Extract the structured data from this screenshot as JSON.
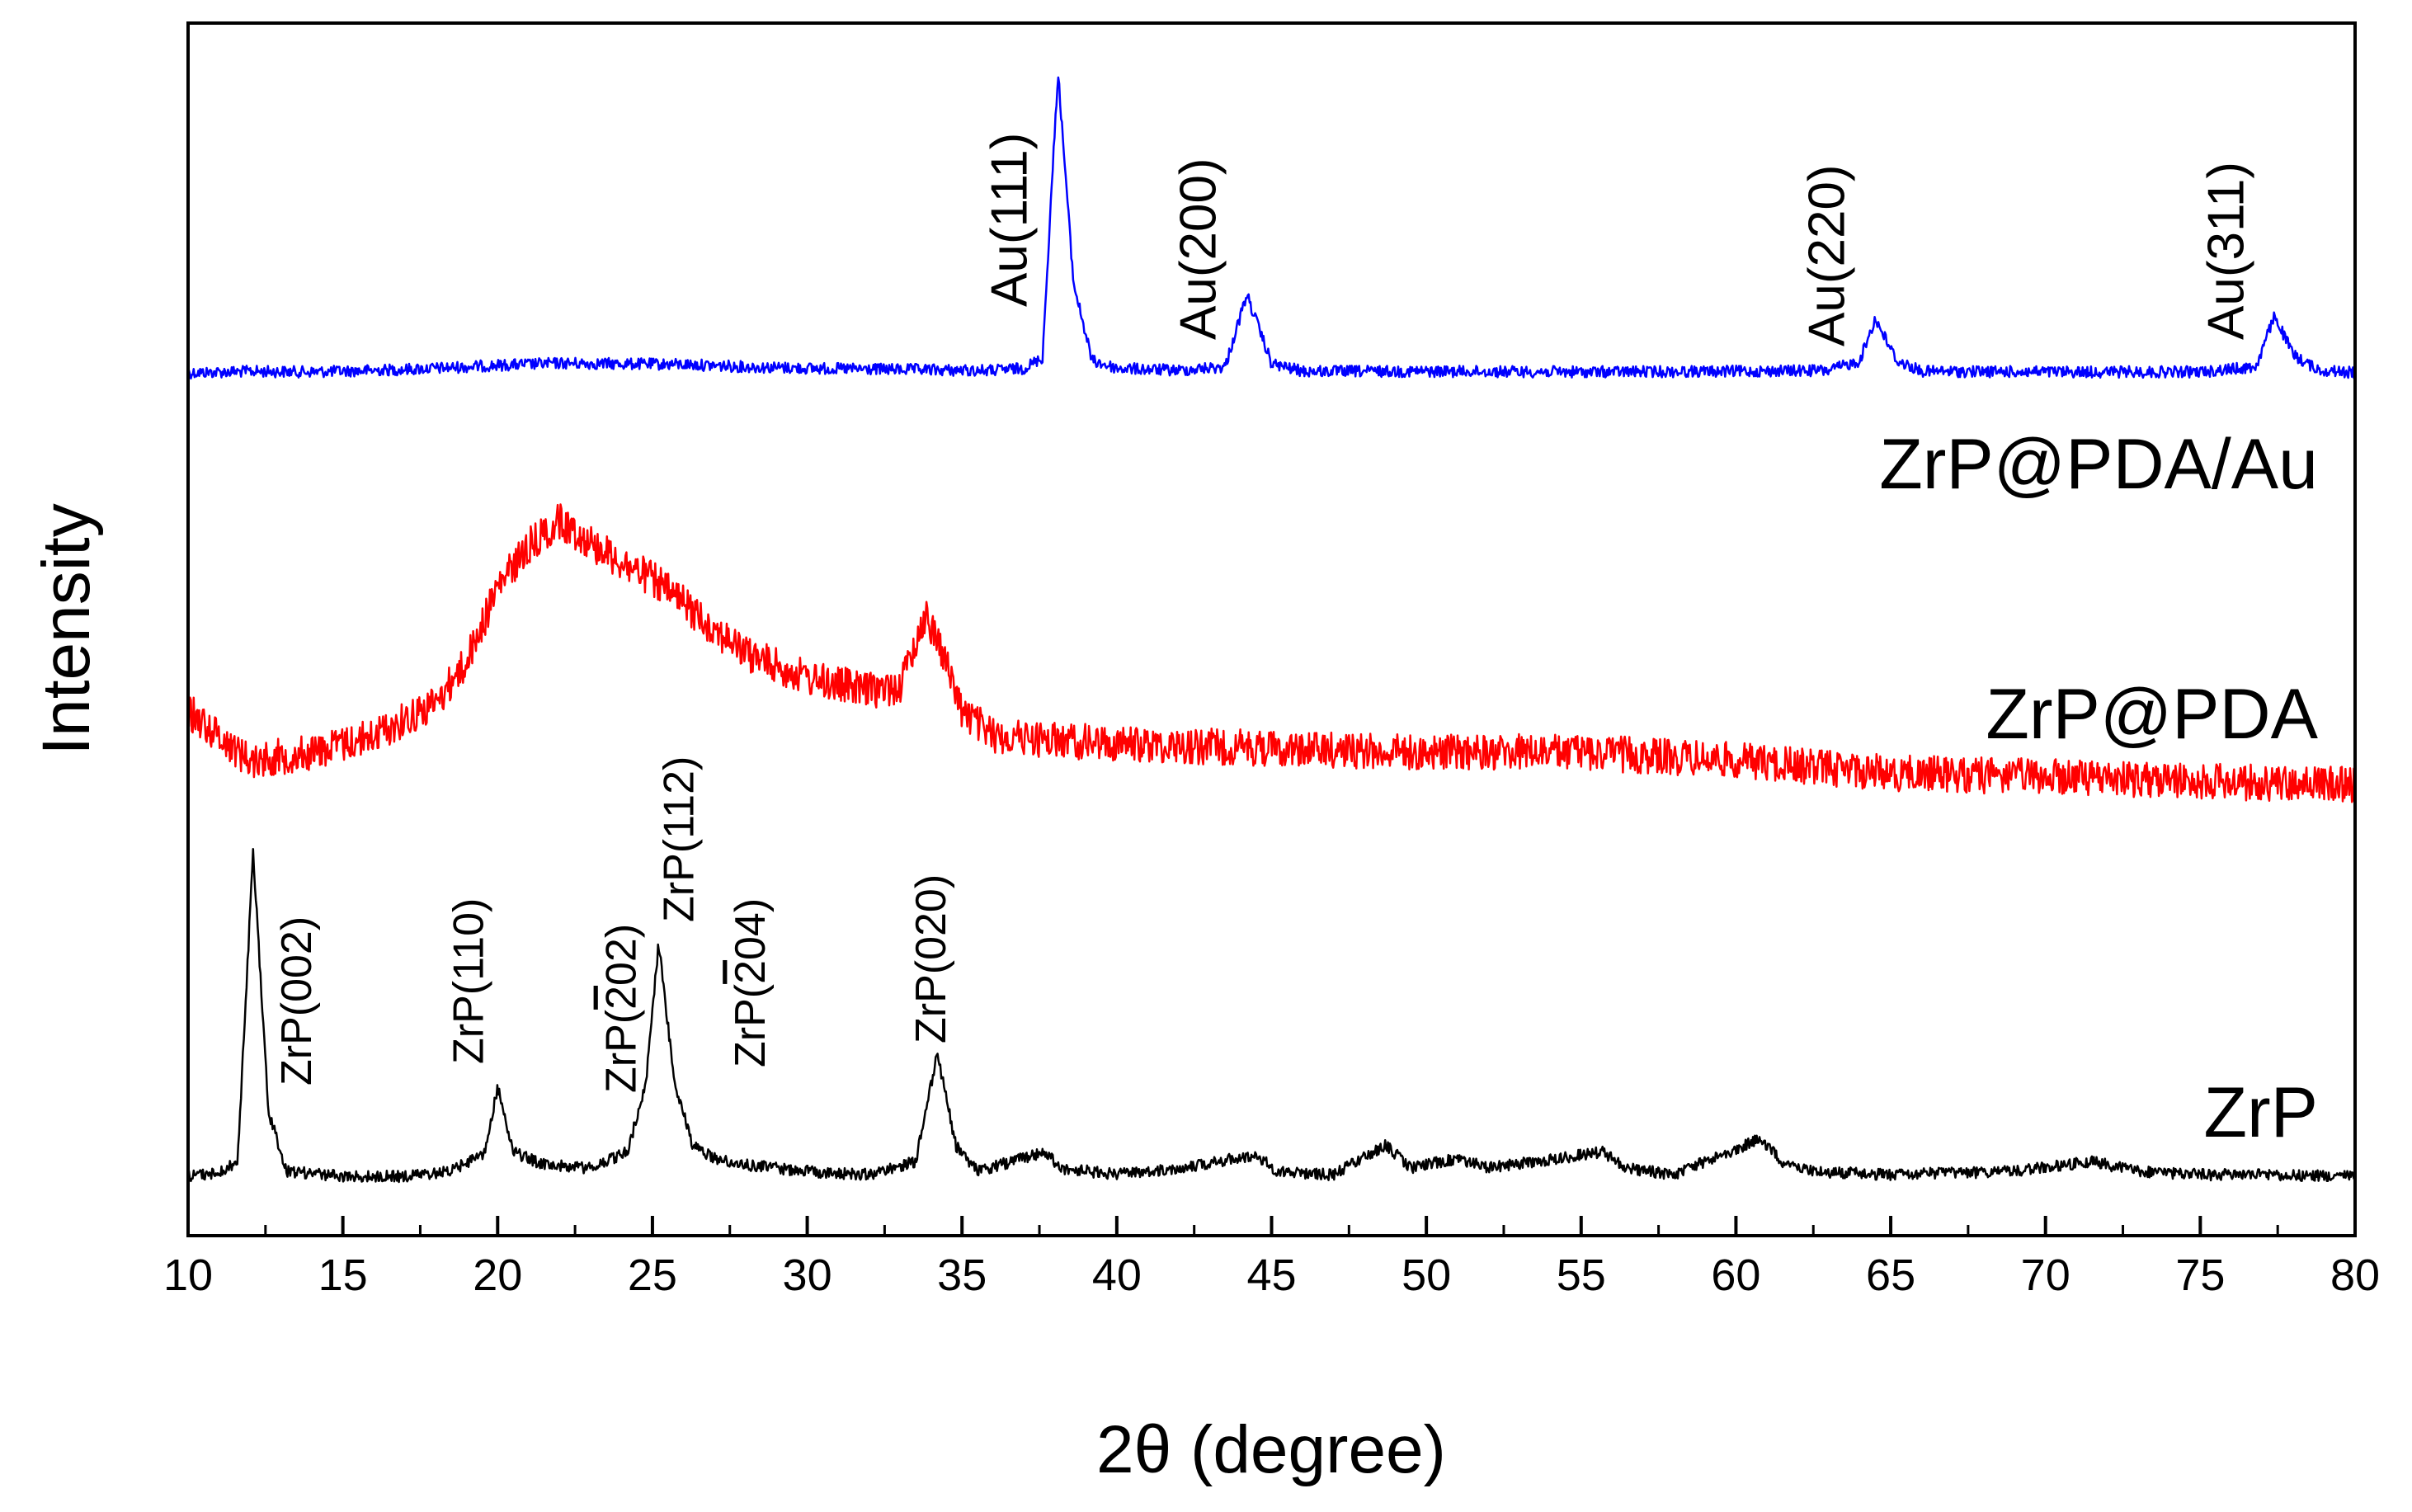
{
  "chart_data": {
    "type": "line",
    "title": "",
    "xlabel": "2θ (degree)",
    "ylabel": "Intensity",
    "xlim": [
      10,
      80
    ],
    "xticks": [
      10,
      15,
      20,
      25,
      30,
      35,
      40,
      45,
      50,
      55,
      60,
      65,
      70,
      75,
      80
    ],
    "yticks_shown": false,
    "series": [
      {
        "name": "ZrP@PDA/Au",
        "color": "#0000ff",
        "baseline": 0,
        "points": [
          [
            10,
            0
          ],
          [
            12,
            0.5
          ],
          [
            14,
            0.3
          ],
          [
            16,
            0.8
          ],
          [
            18,
            1.5
          ],
          [
            20,
            2.5
          ],
          [
            22,
            3.2
          ],
          [
            24,
            3.0
          ],
          [
            26,
            2.8
          ],
          [
            28,
            2.0
          ],
          [
            30,
            1.5
          ],
          [
            32,
            1.2
          ],
          [
            34,
            1.0
          ],
          [
            35,
            0.8
          ],
          [
            36,
            0.8
          ],
          [
            37,
            1.5
          ],
          [
            37.6,
            5
          ],
          [
            38.1,
            100
          ],
          [
            38.6,
            30
          ],
          [
            39.2,
            4
          ],
          [
            40,
            1.5
          ],
          [
            42,
            0.8
          ],
          [
            43.5,
            2
          ],
          [
            44.2,
            26
          ],
          [
            45,
            3
          ],
          [
            46,
            0.5
          ],
          [
            50,
            0.5
          ],
          [
            55,
            0.3
          ],
          [
            60,
            0.5
          ],
          [
            63,
            0.8
          ],
          [
            64,
            4
          ],
          [
            64.5,
            18
          ],
          [
            65.2,
            4
          ],
          [
            66,
            0.5
          ],
          [
            70,
            0.3
          ],
          [
            75,
            0.3
          ],
          [
            76.8,
            2
          ],
          [
            77.4,
            19
          ],
          [
            78,
            6
          ],
          [
            78.8,
            1
          ],
          [
            80,
            0
          ]
        ]
      },
      {
        "name": "ZrP@PDA",
        "color": "#ff0000",
        "baseline": 0,
        "points": [
          [
            10,
            22
          ],
          [
            12,
            10
          ],
          [
            14,
            12
          ],
          [
            16,
            16
          ],
          [
            18,
            24
          ],
          [
            19,
            34
          ],
          [
            20,
            52
          ],
          [
            21,
            62
          ],
          [
            22,
            68
          ],
          [
            23,
            63
          ],
          [
            24,
            58
          ],
          [
            25,
            54
          ],
          [
            26,
            48
          ],
          [
            27,
            42
          ],
          [
            28,
            36
          ],
          [
            30,
            30
          ],
          [
            32,
            27
          ],
          [
            33,
            28
          ],
          [
            33.8,
            45
          ],
          [
            34.2,
            40
          ],
          [
            35,
            22
          ],
          [
            36,
            16
          ],
          [
            40,
            14
          ],
          [
            45,
            13
          ],
          [
            50,
            12
          ],
          [
            55,
            12
          ],
          [
            60,
            10
          ],
          [
            65,
            7
          ],
          [
            70,
            6
          ],
          [
            75,
            5
          ],
          [
            80,
            4
          ]
        ]
      },
      {
        "name": "ZrP",
        "color": "#000000",
        "baseline": 0,
        "points": [
          [
            10,
            0.5
          ],
          [
            11,
            1.5
          ],
          [
            11.6,
            5
          ],
          [
            12.1,
            100
          ],
          [
            12.6,
            20
          ],
          [
            13.2,
            2
          ],
          [
            15,
            0.5
          ],
          [
            17,
            0.5
          ],
          [
            18.5,
            2
          ],
          [
            19.6,
            8
          ],
          [
            20,
            28
          ],
          [
            20.5,
            8
          ],
          [
            21.5,
            4
          ],
          [
            23,
            3
          ],
          [
            24.2,
            8
          ],
          [
            24.8,
            30
          ],
          [
            25.2,
            72
          ],
          [
            25.7,
            30
          ],
          [
            26.3,
            10
          ],
          [
            27,
            6
          ],
          [
            28,
            4
          ],
          [
            30,
            2
          ],
          [
            32,
            1
          ],
          [
            33.5,
            5
          ],
          [
            34.2,
            38
          ],
          [
            34.8,
            10
          ],
          [
            35.5,
            2
          ],
          [
            37.7,
            8
          ],
          [
            38.2,
            3
          ],
          [
            40,
            1
          ],
          [
            42,
            3
          ],
          [
            44.5,
            7
          ],
          [
            45.2,
            2
          ],
          [
            47,
            1
          ],
          [
            48.7,
            10
          ],
          [
            49.5,
            3
          ],
          [
            51,
            6
          ],
          [
            52,
            3
          ],
          [
            53.5,
            5
          ],
          [
            55.7,
            8
          ],
          [
            56.5,
            3
          ],
          [
            58,
            1
          ],
          [
            60.8,
            12
          ],
          [
            61.5,
            5
          ],
          [
            62.5,
            2
          ],
          [
            65,
            1
          ],
          [
            69,
            2
          ],
          [
            71.5,
            5
          ],
          [
            73,
            2
          ],
          [
            75,
            1
          ],
          [
            77,
            1
          ],
          [
            80,
            0.5
          ]
        ]
      }
    ],
    "series_labels": [
      "ZrP@PDA/Au",
      "ZrP@PDA",
      "ZrP"
    ],
    "annotations": {
      "au": [
        {
          "text": "Au(111)",
          "x": 38.1
        },
        {
          "text": "Au(200)",
          "x": 44.2
        },
        {
          "text": "Au(220)",
          "x": 64.5
        },
        {
          "text": "Au(311)",
          "x": 77.4
        }
      ],
      "zrp": [
        {
          "hkl": "002",
          "bar": "",
          "x": 12.1
        },
        {
          "hkl": "110",
          "bar": "",
          "x": 20.0
        },
        {
          "hkl": "202",
          "bar": "2",
          "x": 22.7
        },
        {
          "hkl": "112",
          "bar": "",
          "x": 25.2
        },
        {
          "hkl": "204",
          "bar": "2",
          "x": 27.3
        },
        {
          "hkl": "020",
          "bar": "",
          "x": 34.2
        }
      ],
      "zrp_prefix": "ZrP"
    }
  }
}
